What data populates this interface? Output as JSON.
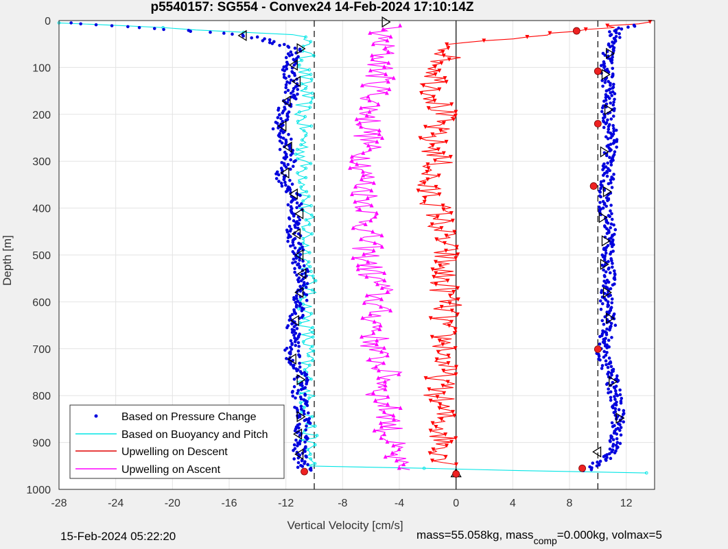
{
  "chart_data": {
    "type": "scatter",
    "title": "p5540157: SG554 - Convex24 14-Feb-2024 17:10:14Z",
    "xlabel": "Vertical Velocity [cm/s]",
    "ylabel": "Depth [m]",
    "xlim": [
      -28,
      14
    ],
    "ylim": [
      1000,
      0
    ],
    "y_reversed": true,
    "grid": true,
    "xticks": [
      "-28",
      "-24",
      "-20",
      "-16",
      "-12",
      "-8",
      "-4",
      "0",
      "4",
      "8",
      "12"
    ],
    "yticks": [
      "0",
      "100",
      "200",
      "300",
      "400",
      "500",
      "600",
      "700",
      "800",
      "900",
      "1000"
    ],
    "legend_position": "bottom-left",
    "reference_lines": [
      {
        "x": -10,
        "style": "dashed",
        "color": "#000000"
      },
      {
        "x": 10,
        "style": "dashed",
        "color": "#000000"
      },
      {
        "x": 0,
        "style": "solid",
        "color": "#000000"
      }
    ],
    "series": [
      {
        "name": "Based on Pressure Change",
        "color": "#0000dd",
        "marker": "dot",
        "descent": {
          "depth": [
            5,
            30,
            60,
            100,
            150,
            200,
            225,
            260,
            300,
            330,
            370,
            400,
            450,
            500,
            550,
            600,
            650,
            700,
            740,
            760,
            800,
            850,
            900,
            940,
            960
          ],
          "velocity": [
            -27,
            -15,
            -11.2,
            -11.8,
            -11.5,
            -12.2,
            -12.5,
            -12,
            -11.8,
            -12.3,
            -11.5,
            -11.3,
            -11.5,
            -11.2,
            -10.8,
            -11,
            -11.4,
            -11.6,
            -11.4,
            -10.9,
            -11.1,
            -10.7,
            -11,
            -11,
            -10.5
          ]
        },
        "ascent": {
          "depth": [
            960,
            940,
            920,
            900,
            850,
            800,
            760,
            730,
            700,
            650,
            600,
            550,
            500,
            450,
            400,
            350,
            300,
            250,
            200,
            150,
            100,
            60,
            20,
            10
          ],
          "velocity": [
            9,
            10.3,
            11,
            11.2,
            11.5,
            11.2,
            11,
            10.5,
            10.3,
            10.8,
            10.6,
            10.8,
            10.7,
            10.9,
            10.5,
            10.6,
            10.8,
            11,
            10.7,
            10.8,
            10.6,
            10.8,
            11.3,
            12.5
          ]
        }
      },
      {
        "name": "Based on Buoyancy and Pitch",
        "color": "#00e5e5",
        "marker": "line+circle",
        "descent": {
          "depth": [
            5,
            30,
            60,
            100,
            150,
            200,
            250,
            300,
            350,
            400,
            450,
            500,
            550,
            600,
            650,
            700,
            750,
            800,
            850,
            900,
            950,
            965
          ],
          "velocity": [
            -28,
            -11,
            -10.5,
            -10.8,
            -10.6,
            -10.9,
            -10.7,
            -10.8,
            -10.6,
            -10.7,
            -10.5,
            -10.6,
            -10.4,
            -10.5,
            -10.6,
            -10.5,
            -10.7,
            -10.5,
            -10.4,
            -10.4,
            -10.3,
            13
          ]
        }
      },
      {
        "name": "Upwelling on Descent",
        "color": "#ff0000",
        "marker": "line+triangle-down",
        "descent": {
          "depth": [
            3,
            50,
            100,
            150,
            200,
            250,
            300,
            350,
            400,
            450,
            500,
            550,
            600,
            650,
            700,
            750,
            800,
            850,
            900,
            950
          ],
          "velocity": [
            14,
            0,
            -1.2,
            -1.5,
            -1,
            -1.8,
            -1.2,
            -2.3,
            -1.3,
            -1,
            -0.8,
            -1,
            -0.6,
            -1,
            -0.7,
            -1,
            -1.2,
            -1,
            -0.9,
            -0.6
          ]
        }
      },
      {
        "name": "Upwelling on Ascent",
        "color": "#ff00ff",
        "marker": "line+triangle-up",
        "ascent": {
          "depth": [
            960,
            920,
            880,
            850,
            800,
            760,
            720,
            700,
            650,
            600,
            565,
            550,
            500,
            450,
            400,
            350,
            300,
            250,
            200,
            150,
            100,
            60,
            30,
            10
          ],
          "velocity": [
            -4.3,
            -4.5,
            -4.8,
            -4.5,
            -5.4,
            -4.7,
            -5.6,
            -5.8,
            -5.6,
            -5.7,
            -5.3,
            -5.9,
            -6.3,
            -6.3,
            -6.1,
            -6.5,
            -6.4,
            -6.2,
            -6.1,
            -5.6,
            -5.3,
            -5.2,
            -5.5,
            -4.6
          ]
        }
      }
    ],
    "markers": {
      "open_triangles_color": "#000000",
      "red_filled_color": "#ee2222",
      "open_triangles": [
        {
          "x": -15,
          "y": 32,
          "dir": "left"
        },
        {
          "x": -11,
          "y": 60,
          "dir": "right"
        },
        {
          "x": -11.4,
          "y": 95,
          "dir": "left"
        },
        {
          "x": -11.2,
          "y": 130,
          "dir": "left"
        },
        {
          "x": -11.9,
          "y": 172,
          "dir": "left"
        },
        {
          "x": -12.2,
          "y": 225,
          "dir": "left"
        },
        {
          "x": -11.8,
          "y": 270,
          "dir": "left"
        },
        {
          "x": -12,
          "y": 325,
          "dir": "left"
        },
        {
          "x": -11.4,
          "y": 370,
          "dir": "left"
        },
        {
          "x": -11,
          "y": 412,
          "dir": "left"
        },
        {
          "x": -11.2,
          "y": 455,
          "dir": "left"
        },
        {
          "x": -11,
          "y": 500,
          "dir": "left"
        },
        {
          "x": -10.8,
          "y": 540,
          "dir": "left"
        },
        {
          "x": -11,
          "y": 580,
          "dir": "left"
        },
        {
          "x": -11.3,
          "y": 640,
          "dir": "left"
        },
        {
          "x": -11.5,
          "y": 722,
          "dir": "left"
        },
        {
          "x": -11,
          "y": 766,
          "dir": "right"
        },
        {
          "x": -11,
          "y": 845,
          "dir": "right"
        },
        {
          "x": -11.1,
          "y": 882,
          "dir": "left"
        },
        {
          "x": -11,
          "y": 925,
          "dir": "left"
        },
        {
          "x": -5,
          "y": 3,
          "dir": "right"
        },
        {
          "x": 10.8,
          "y": 70,
          "dir": "right"
        },
        {
          "x": 10.5,
          "y": 115,
          "dir": "right"
        },
        {
          "x": 10.7,
          "y": 190,
          "dir": "right"
        },
        {
          "x": 10.4,
          "y": 280,
          "dir": "right"
        },
        {
          "x": 10.6,
          "y": 365,
          "dir": "right"
        },
        {
          "x": 10.3,
          "y": 420,
          "dir": "right"
        },
        {
          "x": 10.5,
          "y": 470,
          "dir": "right"
        },
        {
          "x": 10.4,
          "y": 520,
          "dir": "right"
        },
        {
          "x": 10.6,
          "y": 580,
          "dir": "right"
        },
        {
          "x": 10.8,
          "y": 635,
          "dir": "right"
        },
        {
          "x": 11,
          "y": 770,
          "dir": "right"
        },
        {
          "x": 11.5,
          "y": 848,
          "dir": "right"
        },
        {
          "x": 10,
          "y": 920,
          "dir": "left"
        },
        {
          "x": 0,
          "y": 967,
          "dir": "star"
        }
      ],
      "red_filled": [
        {
          "x": 8.5,
          "y": 22
        },
        {
          "x": 10,
          "y": 108
        },
        {
          "x": 10,
          "y": 220
        },
        {
          "x": 9.7,
          "y": 353
        },
        {
          "x": 10,
          "y": 701
        },
        {
          "x": 8.9,
          "y": 955
        },
        {
          "x": -10.7,
          "y": 962
        },
        {
          "x": 0,
          "y": 967
        }
      ]
    }
  },
  "footer": {
    "timestamp": "15-Feb-2024 05:22:20",
    "mass_text": "mass=55.058kg, mass",
    "mass_sub": "comp",
    "mass_tail": "=0.000kg, volmax=5"
  }
}
